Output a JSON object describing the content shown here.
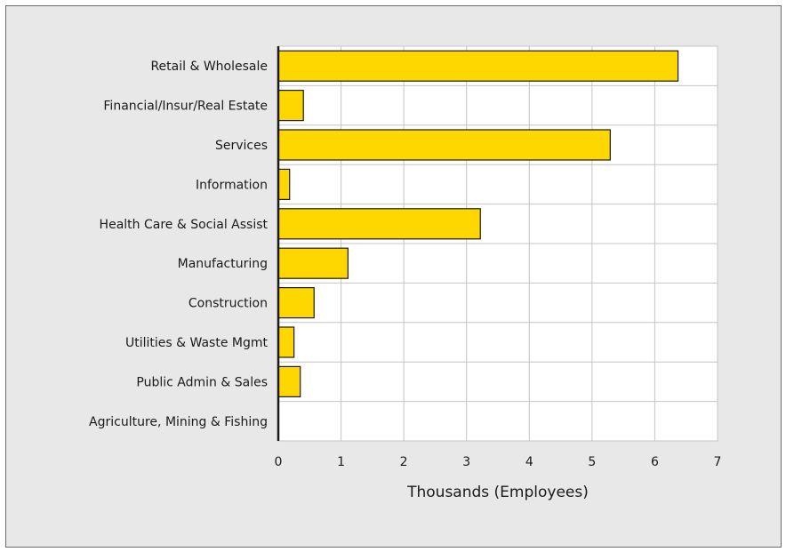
{
  "chart_data": {
    "type": "bar",
    "orientation": "horizontal",
    "categories": [
      "Retail & Wholesale",
      "Financial/Insur/Real Estate",
      "Services",
      "Information",
      "Health Care & Social Assist",
      "Manufacturing",
      "Construction",
      "Utilities & Waste Mgmt",
      "Public Admin & Sales",
      "Agriculture, Mining & Fishing"
    ],
    "values": [
      6.37,
      0.4,
      5.29,
      0.18,
      3.22,
      1.11,
      0.57,
      0.25,
      0.35,
      0.0
    ],
    "xlabel": "Thousands (Employees)",
    "ylabel": "",
    "title": "",
    "xlim": [
      0,
      7
    ],
    "xticks": [
      "0",
      "1",
      "2",
      "3",
      "4",
      "5",
      "6",
      "7"
    ],
    "grid": true,
    "legend": "none",
    "colors": {
      "bar_fill": "#ffd700",
      "bar_stroke": "#1a1a1a",
      "plot_background": "#ffffff",
      "frame_background": "#e8e8e8",
      "grid": "#c4c4c4"
    }
  }
}
